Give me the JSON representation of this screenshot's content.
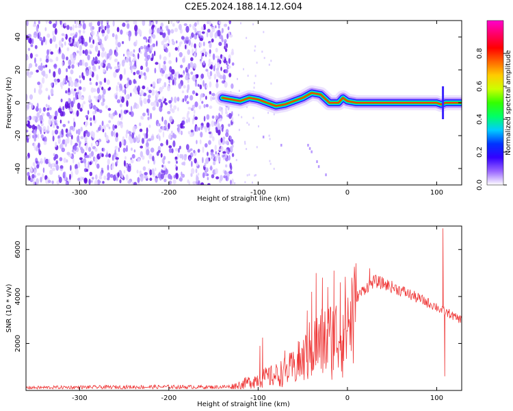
{
  "title": "C2E5.2024.188.14.12.G04",
  "chart_data": [
    {
      "type": "heatmap",
      "name": "spectrogram",
      "xlabel": "Height of straight line (km)",
      "ylabel": "Frequency (Hz)",
      "xlim": [
        -360,
        128
      ],
      "ylim": [
        -50,
        50
      ],
      "x_ticks": [
        -300,
        -200,
        -100,
        0,
        100
      ],
      "x_tick_labels": [
        "-300",
        "-200",
        "-100",
        "0",
        "100"
      ],
      "y_ticks": [
        -40,
        -20,
        0,
        20,
        40
      ],
      "y_tick_labels": [
        "-40",
        "-20",
        "0",
        "20",
        "40"
      ],
      "noise_region_x": [
        -360,
        -128
      ],
      "signal_track": {
        "x": [
          -140,
          -130,
          -120,
          -110,
          -100,
          -90,
          -80,
          -70,
          -60,
          -50,
          -40,
          -30,
          -20,
          -10,
          -5,
          0,
          10,
          20,
          40,
          60,
          80,
          100,
          105,
          110,
          128
        ],
        "y": [
          3,
          2,
          1,
          3,
          2,
          0,
          -2,
          -1,
          1,
          3,
          6,
          5,
          0,
          0,
          3,
          1,
          0,
          0,
          0,
          0,
          0,
          0,
          -1,
          0,
          0
        ]
      },
      "colorbar": {
        "label": "Normalized spectral amplitude",
        "ticks": [
          0.0,
          0.2,
          0.4,
          0.6,
          0.8
        ],
        "tick_labels": [
          "0.0",
          "0.2",
          "0.4",
          "0.6",
          "0.8"
        ],
        "range": [
          0,
          1
        ],
        "colormap": [
          "#ffffff",
          "#9966ff",
          "#3300ff",
          "#0033ff",
          "#00ccff",
          "#00ff66",
          "#33ff00",
          "#ccff00",
          "#ffcc00",
          "#ff6600",
          "#ff0000",
          "#ff0066",
          "#ff00cc"
        ]
      }
    },
    {
      "type": "line",
      "name": "snr",
      "xlabel": "Height of straight line (km)",
      "ylabel": "SNR (10 * v/v)",
      "xlim": [
        -360,
        128
      ],
      "ylim": [
        0,
        7000
      ],
      "x_ticks": [
        -300,
        -200,
        -100,
        0,
        100
      ],
      "x_tick_labels": [
        "-300",
        "-200",
        "-100",
        "0",
        "100"
      ],
      "y_ticks": [
        2000,
        4000,
        6000
      ],
      "y_tick_labels": [
        "2000",
        "4000",
        "6000"
      ],
      "color": "#ee3333",
      "envelope": {
        "x": [
          -360,
          -300,
          -200,
          -150,
          -130,
          -120,
          -110,
          -100,
          -90,
          -80,
          -70,
          -60,
          -50,
          -40,
          -30,
          -20,
          -10,
          0,
          10,
          20,
          30,
          40,
          60,
          80,
          100,
          105,
          108,
          110,
          115,
          120,
          128
        ],
        "y": [
          150,
          170,
          190,
          180,
          200,
          300,
          450,
          600,
          700,
          800,
          1000,
          1200,
          1600,
          2200,
          2500,
          2700,
          2900,
          3600,
          4000,
          4400,
          4700,
          4600,
          4300,
          3950,
          3600,
          3450,
          3400,
          3350,
          3300,
          3150,
          3050
        ]
      },
      "spikes": [
        {
          "x": -98,
          "y": 1900
        },
        {
          "x": -95,
          "y": 2250
        },
        {
          "x": -70,
          "y": 1700
        },
        {
          "x": -55,
          "y": 2100
        },
        {
          "x": -45,
          "y": 3400
        },
        {
          "x": -40,
          "y": 4200
        },
        {
          "x": -35,
          "y": 5000
        },
        {
          "x": -28,
          "y": 4800
        },
        {
          "x": -22,
          "y": 4400
        },
        {
          "x": -15,
          "y": 5100
        },
        {
          "x": -8,
          "y": 4600
        },
        {
          "x": 5,
          "y": 4800
        },
        {
          "x": 25,
          "y": 5200
        },
        {
          "x": 107,
          "y": 6900
        },
        {
          "x": 109,
          "y": 600
        }
      ]
    }
  ]
}
